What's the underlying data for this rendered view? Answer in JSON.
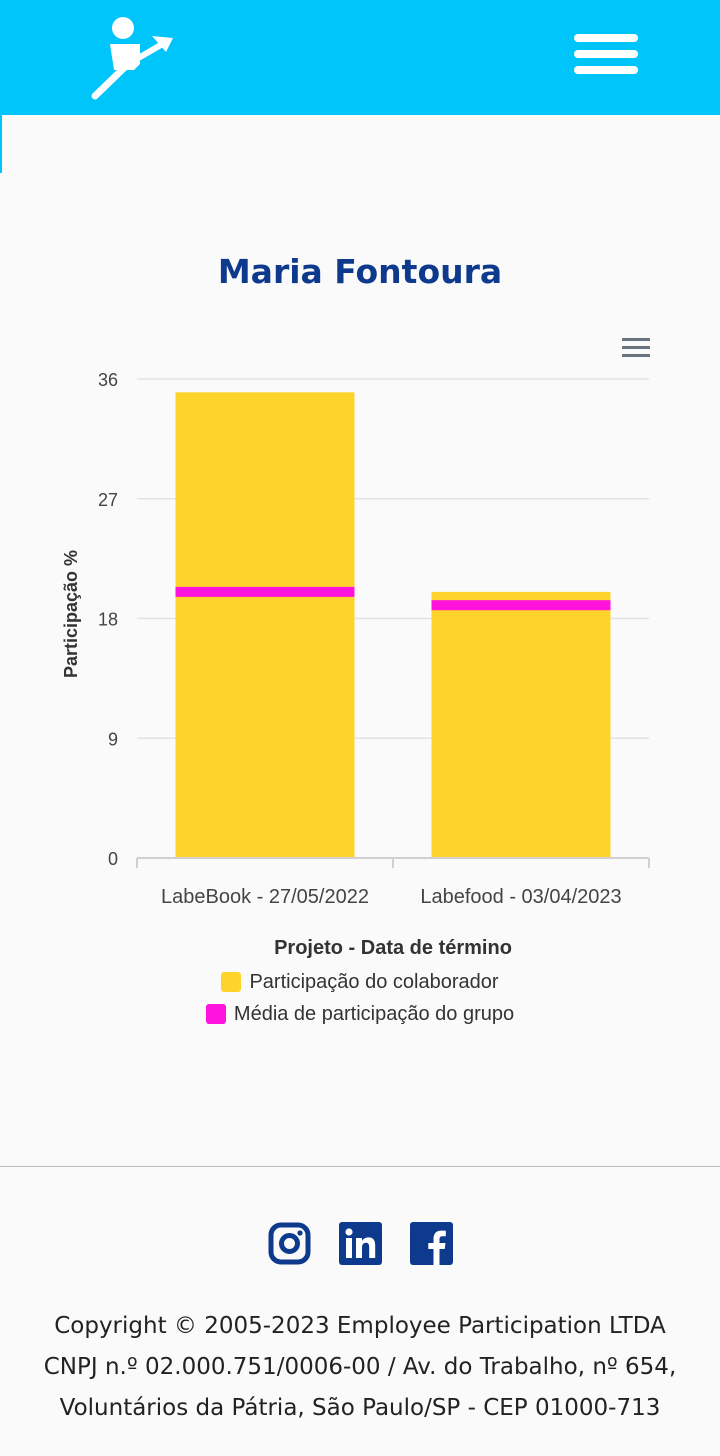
{
  "header": {
    "logo_icon": "person-growth-arrow-icon",
    "menu_icon": "hamburger-menu-icon",
    "background": "#00c5fb"
  },
  "page": {
    "title": "Maria Fontoura"
  },
  "chart_menu_icon": "hamburger-menu-icon",
  "chart_data": {
    "type": "bar",
    "categories": [
      "LabeBook - 27/05/2022",
      "Labefood - 03/04/2023"
    ],
    "series": [
      {
        "name": "Participação do colaborador",
        "values": [
          35,
          20
        ],
        "color": "#fed42a"
      },
      {
        "name": "Média de participação do grupo",
        "values": [
          20,
          19
        ],
        "color": "#ff13dd",
        "style": "line-marker"
      }
    ],
    "xlabel": "Projeto - Data de término",
    "ylabel": "Participação %",
    "ylim": [
      0,
      36
    ],
    "yticks": [
      "0",
      "9",
      "18",
      "27",
      "36"
    ],
    "grid": true,
    "legend_position": "bottom"
  },
  "footer": {
    "social_icons": [
      "instagram-icon",
      "linkedin-icon",
      "facebook-icon"
    ],
    "line1": "Copyright © 2005-2023 Employee Participation LTDA",
    "line2": "CNPJ n.º 02.000.751/0006-00 / Av. do Trabalho, nº 654,",
    "line3": "Voluntários da Pátria, São Paulo/SP - CEP 01000-713",
    "icon_color": "#0d3a8c"
  }
}
